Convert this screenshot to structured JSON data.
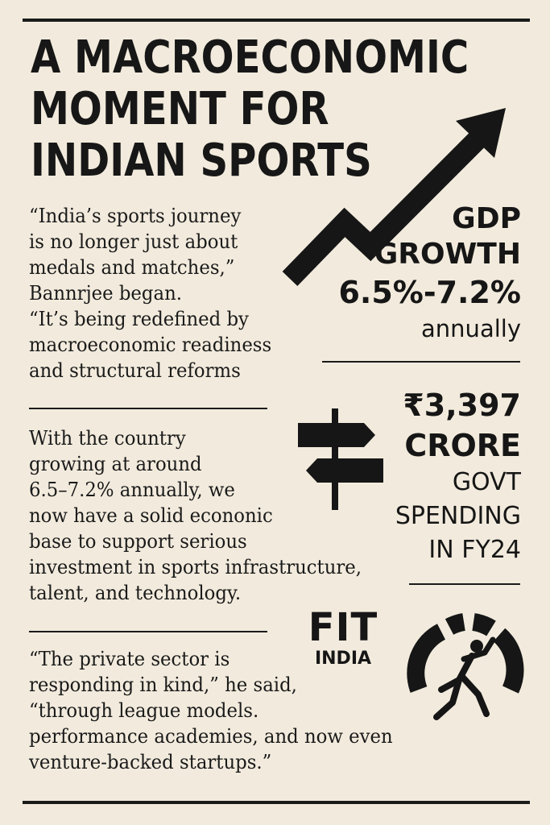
{
  "headline": {
    "lines": [
      "A MACROECONOMIC",
      "MOMENT FOR",
      "INDIAN SPORTS"
    ]
  },
  "quote1": {
    "lines": [
      "“India’s sports journey",
      "is no longer just about",
      "medals and matches,”",
      "Bannrjee began.",
      "“It’s being redefined by",
      "macroeconomic readiness",
      "and structural reforms"
    ]
  },
  "paragraph2": {
    "lines": [
      "With the country",
      "growing at around",
      "6.5–7.2% annually, we",
      "now have a solid econonic",
      "base to support serious",
      "investment in sports infrastructure,",
      "talent, and technology."
    ]
  },
  "quote3": {
    "lines": [
      "“The private sector is",
      "responding in kind,” he said,",
      "“through league models.",
      "performance academies, and now even",
      "venture-backed startups.”"
    ]
  },
  "stat_gdp": {
    "line1": "GDP",
    "line2": "GROWTH",
    "value": "6.5%-7.2%",
    "unit": "annually"
  },
  "stat_spending": {
    "amount": "₹3,397",
    "unit": "CRORE",
    "label1": "GOVT",
    "label2": "SPENDING",
    "label3": "IN FY24"
  },
  "fit_india": {
    "line1": "FIT",
    "line2": "INDIA"
  },
  "icons": {
    "growth": "trend-up-arrow-icon",
    "signpost": "signpost-icon",
    "athlete": "runner-gauge-icon"
  },
  "colors": {
    "background": "#f2ebdd",
    "ink": "#171717"
  }
}
